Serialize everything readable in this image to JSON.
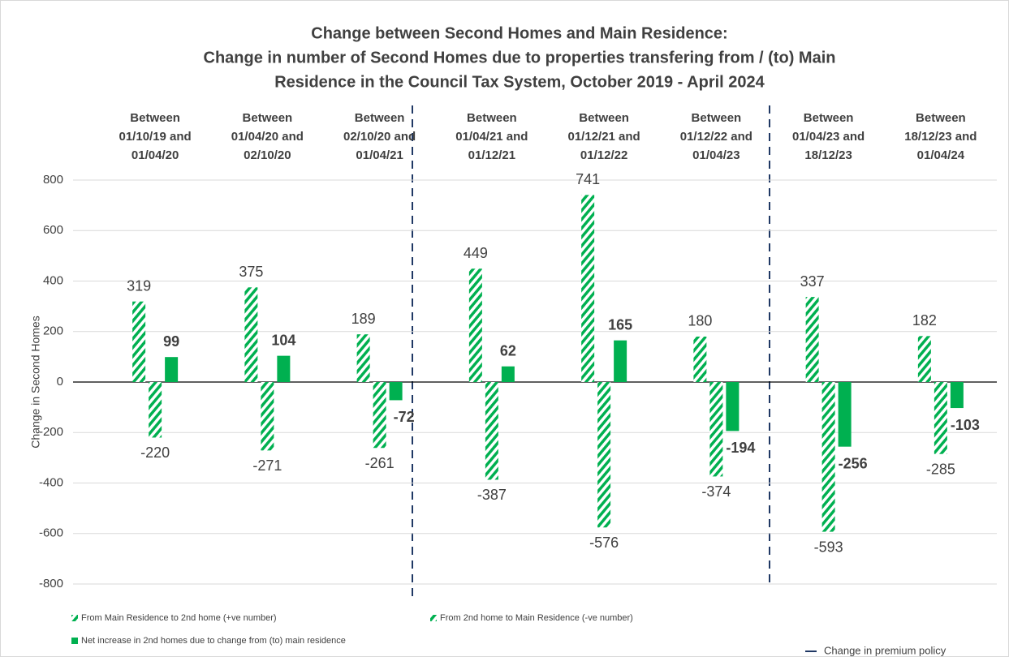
{
  "chart_data": {
    "type": "bar",
    "title": [
      "Change between Second Homes and Main Residence:",
      "Change in number of Second Homes due to properties transfering from / (to) Main",
      "Residence in the Council Tax System, October 2019 - April 2024"
    ],
    "y_axis_label": "Change in Second Homes",
    "categories": [
      [
        "Between",
        "01/10/19 and",
        "01/04/20"
      ],
      [
        "Between",
        "01/04/20 and",
        "02/10/20"
      ],
      [
        "Between",
        "02/10/20 and",
        "01/04/21"
      ],
      [
        "Between",
        "01/04/21 and",
        "01/12/21"
      ],
      [
        "Between",
        "01/12/21 and",
        "01/12/22"
      ],
      [
        "Between",
        "01/12/22 and",
        "01/04/23"
      ],
      [
        "Between",
        "01/04/23 and",
        "18/12/23"
      ],
      [
        "Between",
        "18/12/23 and",
        "01/04/24"
      ]
    ],
    "series": [
      {
        "name": "From Main Residence to 2nd home (+ve number)",
        "color": "#00b050",
        "pattern": "hatch",
        "values": [
          319,
          375,
          189,
          449,
          741,
          180,
          337,
          182
        ]
      },
      {
        "name": "From 2nd home to Main Residence (-ve number)",
        "color": "#00b050",
        "pattern": "hatch",
        "values": [
          -220,
          -271,
          -261,
          -387,
          -576,
          -374,
          -593,
          -285
        ]
      },
      {
        "name": "Net increase in 2nd homes due to change from (to) main residence",
        "color": "#00b050",
        "pattern": "solid",
        "values": [
          99,
          104,
          -72,
          62,
          165,
          -194,
          -256,
          -103
        ]
      }
    ],
    "policy_line_label": "Change in premium policy",
    "ylim": [
      -800,
      800
    ],
    "yticks": [
      -800,
      -600,
      -400,
      -200,
      0,
      200,
      400,
      600,
      800
    ],
    "grid": true
  }
}
